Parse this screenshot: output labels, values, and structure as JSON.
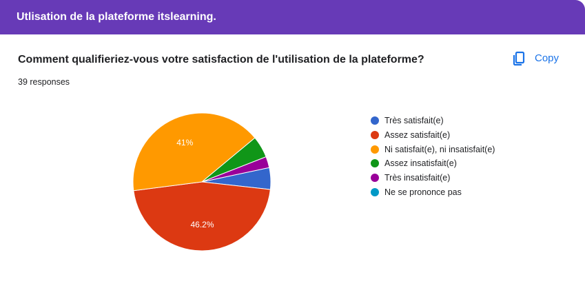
{
  "header": {
    "title": "Utlisation de la plateforme itslearning."
  },
  "question": {
    "title": "Comment qualifieriez-vous votre satisfaction de l'utilisation de la plateforme?",
    "responses": "39 responses",
    "copy_label": "Copy",
    "copy_icon": "copy-icon"
  },
  "colors": {
    "header": "#673ab7",
    "accent": "#1a73e8"
  },
  "chart_data": {
    "type": "pie",
    "legend_position": "right",
    "slices": [
      {
        "label": "Très satisfait(e)",
        "value": 5.1,
        "color": "#3366cc",
        "data_label": ""
      },
      {
        "label": "Assez satisfait(e)",
        "value": 46.2,
        "color": "#dc3912",
        "data_label": "46.2%"
      },
      {
        "label": "Ni satisfait(e), ni insatisfait(e)",
        "value": 41,
        "color": "#ff9900",
        "data_label": "41%"
      },
      {
        "label": "Assez insatisfait(e)",
        "value": 5.1,
        "color": "#109618",
        "data_label": ""
      },
      {
        "label": "Très insatisfait(e)",
        "value": 2.6,
        "color": "#990099",
        "data_label": ""
      },
      {
        "label": "Ne se prononce pas",
        "value": 0,
        "color": "#0099c6",
        "data_label": ""
      }
    ]
  }
}
